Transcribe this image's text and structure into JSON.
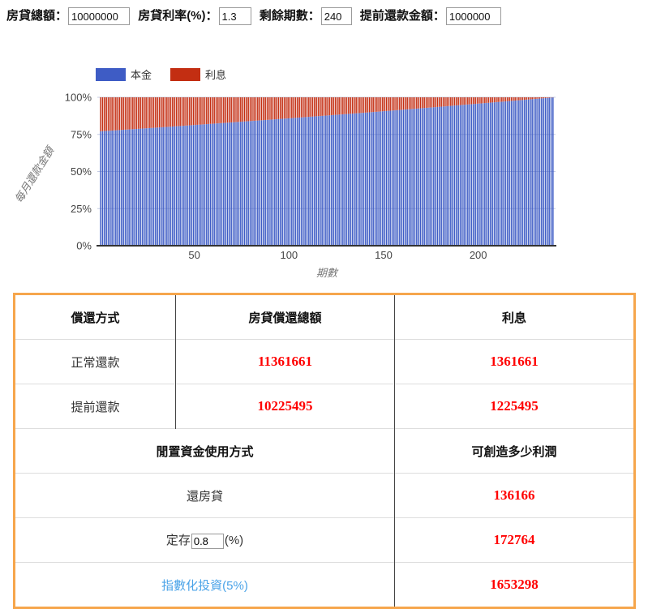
{
  "form": {
    "fields": [
      {
        "label": "房貸總額：",
        "value": "10000000"
      },
      {
        "label": "房貸利率(%)：",
        "value": "1.3"
      },
      {
        "label": "剩餘期數：",
        "value": "240"
      },
      {
        "label": "提前還款金額：",
        "value": "1000000"
      }
    ]
  },
  "chart_data": {
    "type": "bar",
    "stacked": true,
    "percent_stacked": true,
    "title": "",
    "xlabel": "期數",
    "ylabel": "每月還款金額",
    "x_ticks": [
      50,
      100,
      150,
      200
    ],
    "y_ticks": [
      "0%",
      "25%",
      "50%",
      "75%",
      "100%"
    ],
    "x_range": [
      1,
      240
    ],
    "ylim": [
      0,
      100
    ],
    "grid": true,
    "legend_position": "top",
    "series": [
      {
        "name": "本金",
        "color": "#3E5CC5"
      },
      {
        "name": "利息",
        "color": "#C32E12"
      }
    ],
    "principal_pct_samples": {
      "t": [
        1,
        20,
        40,
        60,
        80,
        100,
        120,
        140,
        160,
        180,
        200,
        220,
        240
      ],
      "pct": [
        77.1,
        78.7,
        80.4,
        82.2,
        84.0,
        85.8,
        87.7,
        89.6,
        91.6,
        93.6,
        95.7,
        97.8,
        99.9
      ]
    },
    "note": "100% stacked monthly payment split; 利息 pct = 100 - 本金 pct, 240 bars",
    "colors": {
      "gridline": "#c4cbe2",
      "axis_line": "#333333",
      "tick_text": "#444444",
      "axis_title_text": "#777777"
    }
  },
  "table": {
    "border_color": "#F6A64C",
    "value_color": "#ff0000",
    "header1": {
      "col1": "償還方式",
      "col2": "房貸償還總額",
      "col3": "利息"
    },
    "rows1": [
      {
        "label": "正常還款",
        "total": "11361661",
        "interest": "1361661"
      },
      {
        "label": "提前還款",
        "total": "10225495",
        "interest": "1225495"
      }
    ],
    "header2": {
      "col1": "閒置資金使用方式",
      "col2": "可創造多少利潤"
    },
    "row_mortgage": {
      "label": "還房貸",
      "profit": "136166"
    },
    "row_deposit": {
      "label_prefix": "定存",
      "rate_value": "0.8",
      "label_suffix": "(%)",
      "profit": "172764"
    },
    "row_invest": {
      "label": "指數化投資(5%)",
      "profit": "1653298"
    }
  }
}
